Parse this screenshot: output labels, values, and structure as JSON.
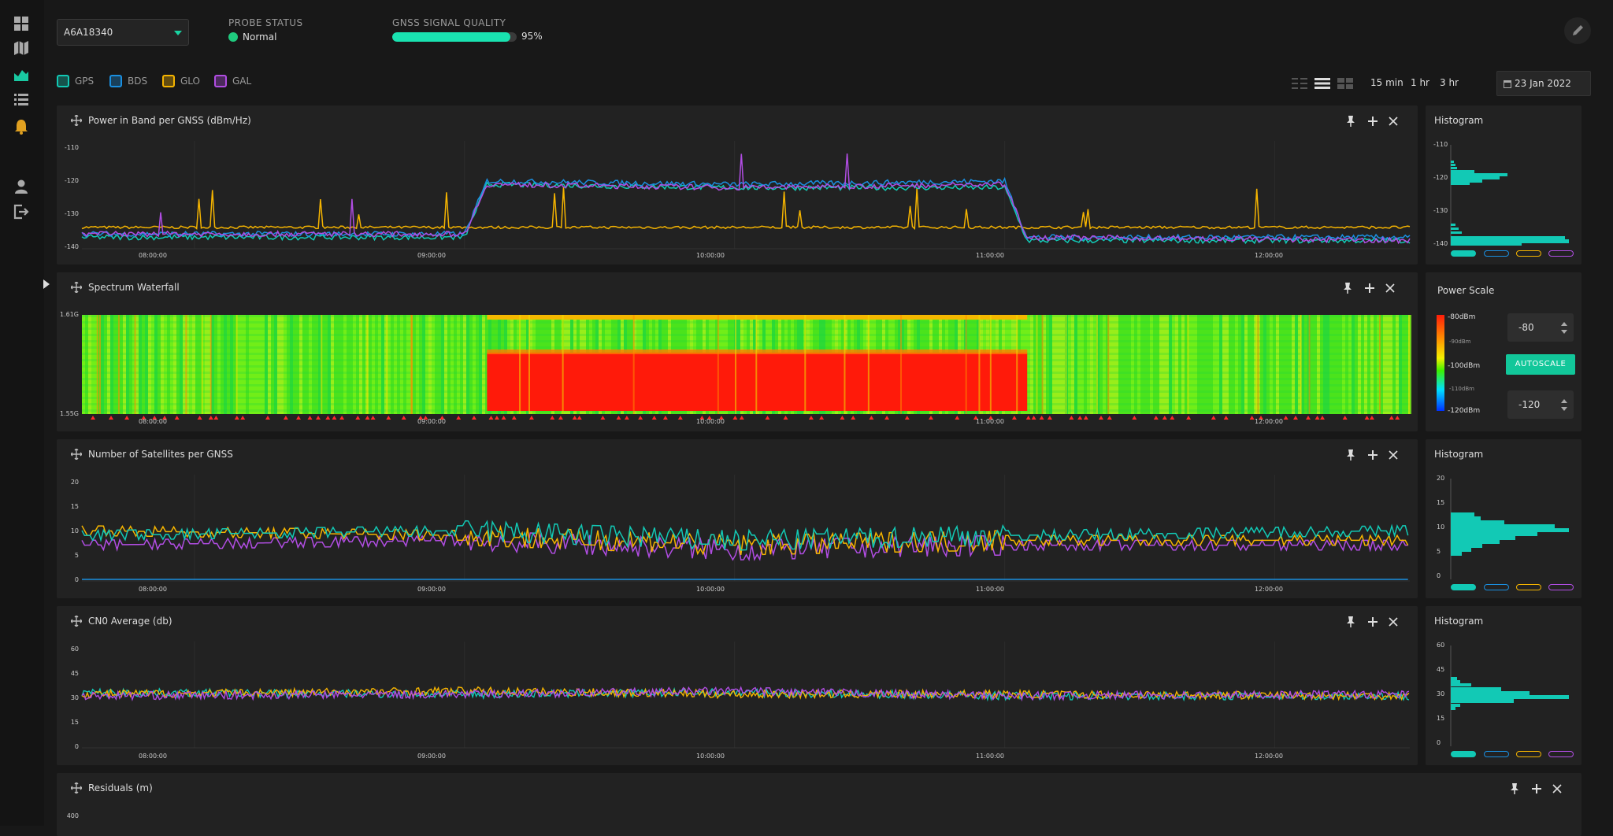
{
  "sidebar": {
    "icons": [
      "dashboard-icon",
      "map-icon",
      "area-chart-icon",
      "list-icon",
      "bell-icon",
      "user-icon",
      "logout-icon"
    ]
  },
  "header": {
    "probe_id": "A6A18340",
    "probe_status_label": "PROBE STATUS",
    "probe_status_value": "Normal",
    "signal_quality_label": "GNSS SIGNAL QUALITY",
    "signal_quality_value": "95%",
    "signal_quality_fraction": 0.95
  },
  "legend": [
    {
      "label": "GPS",
      "color": "#12c9b5"
    },
    {
      "label": "BDS",
      "color": "#1a8fe0"
    },
    {
      "label": "GLO",
      "color": "#f5b400"
    },
    {
      "label": "GAL",
      "color": "#b14de3"
    }
  ],
  "time_controls": {
    "ranges": [
      "15 min",
      "1 hr",
      "3 hr"
    ],
    "date": "23 Jan 2022"
  },
  "time_ticks": [
    "08:00:00",
    "09:00:00",
    "10:00:00",
    "11:00:00",
    "12:00:00"
  ],
  "panels": {
    "power": {
      "title": "Power in Band per GNSS (dBm/Hz)",
      "yticks": [
        "-110",
        "-120",
        "-130",
        "-140"
      ]
    },
    "waterfall": {
      "title": "Spectrum Waterfall",
      "ylabels": [
        "1.61G",
        "1.55G"
      ]
    },
    "satellites": {
      "title": "Number of Satellites per GNSS",
      "yticks": [
        "20",
        "15",
        "10",
        "5",
        "0"
      ]
    },
    "cn0": {
      "title": "CN0 Average (db)",
      "yticks": [
        "60",
        "45",
        "30",
        "15",
        "0"
      ]
    },
    "residuals": {
      "title": "Residuals (m)",
      "yticks": [
        "400"
      ]
    }
  },
  "histograms": {
    "power": {
      "title": "Histogram",
      "yticks": [
        "-110",
        "-120",
        "-130",
        "-140"
      ]
    },
    "satellites": {
      "title": "Histogram",
      "yticks": [
        "20",
        "15",
        "10",
        "5",
        "0"
      ]
    },
    "cn0": {
      "title": "Histogram",
      "yticks": [
        "60",
        "45",
        "30",
        "15",
        "0"
      ]
    }
  },
  "power_scale": {
    "title": "Power Scale",
    "labels": [
      "-80dBm",
      "-90dBm",
      "-100dBm",
      "-110dBm",
      "-120dBm"
    ],
    "max_value": "-80",
    "min_value": "-120",
    "autoscale_label": "AUTOSCALE"
  },
  "chart_data": [
    {
      "type": "line",
      "title": "Power in Band per GNSS (dBm/Hz)",
      "x": [
        "07:35",
        "09:00",
        "09:05",
        "10:00",
        "11:00",
        "11:05",
        "12:30"
      ],
      "ylim": [
        -140,
        -110
      ],
      "series": [
        {
          "name": "GPS",
          "values": [
            -137,
            -137,
            -121,
            -122,
            -122,
            -138,
            -138
          ]
        },
        {
          "name": "BDS",
          "values": [
            -136,
            -136,
            -120,
            -121,
            -120,
            -137,
            -137
          ]
        },
        {
          "name": "GLO",
          "values": [
            -134,
            -134,
            -134,
            -134,
            -134,
            -134,
            -134
          ]
        },
        {
          "name": "GAL",
          "values": [
            -136,
            -136,
            -121,
            -122,
            -121,
            -137,
            -138
          ]
        }
      ]
    },
    {
      "type": "heatmap",
      "title": "Spectrum Waterfall",
      "y_range": [
        "1.55G",
        "1.61G"
      ],
      "x_range": [
        "07:35",
        "12:30"
      ]
    },
    {
      "type": "line",
      "title": "Number of Satellites per GNSS",
      "x": [
        "07:35",
        "09:00",
        "10:00",
        "11:00",
        "12:30"
      ],
      "ylim": [
        0,
        20
      ],
      "series": [
        {
          "name": "GPS",
          "values": [
            9,
            10,
            8,
            9,
            10
          ]
        },
        {
          "name": "BDS",
          "values": [
            0,
            0,
            0,
            0,
            0
          ]
        },
        {
          "name": "GLO",
          "values": [
            10,
            9,
            7,
            8,
            8
          ]
        },
        {
          "name": "GAL",
          "values": [
            7,
            8,
            6,
            7,
            7
          ]
        }
      ]
    },
    {
      "type": "line",
      "title": "CN0 Average (db)",
      "x": [
        "07:35",
        "09:00",
        "10:00",
        "11:00",
        "12:30"
      ],
      "ylim": [
        0,
        60
      ],
      "series": [
        {
          "name": "GPS",
          "values": [
            33,
            32,
            33,
            31,
            31
          ]
        },
        {
          "name": "GLO",
          "values": [
            32,
            34,
            32,
            32,
            31
          ]
        },
        {
          "name": "GAL",
          "values": [
            31,
            32,
            34,
            31,
            32
          ]
        }
      ]
    }
  ]
}
